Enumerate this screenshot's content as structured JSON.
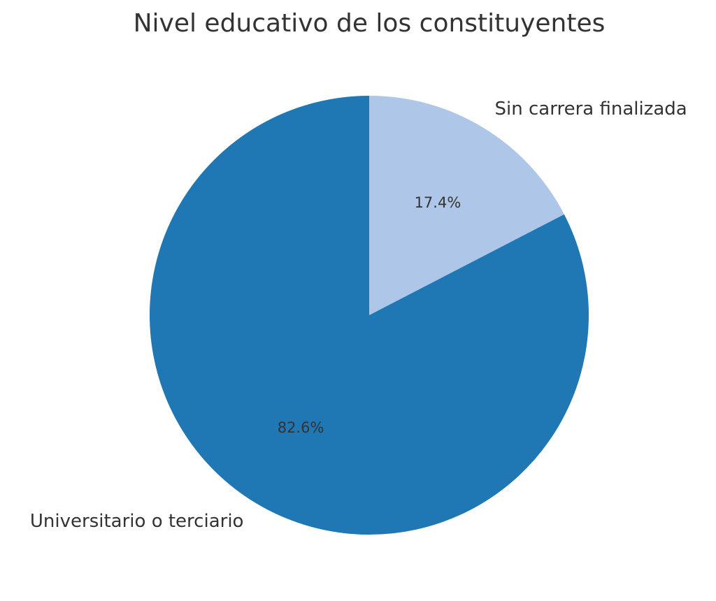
{
  "chart_data": {
    "type": "pie",
    "title": "Nivel educativo de los constituyentes",
    "labels": [
      "Sin carrera finalizada",
      "Universitario o terciario"
    ],
    "values": [
      17.4,
      82.6
    ],
    "value_labels": [
      "17.4%",
      "82.6%"
    ],
    "colors": [
      "#aec7e8",
      "#1f77b4"
    ],
    "start_angle": "top, counterclockwise",
    "legend": "none"
  }
}
